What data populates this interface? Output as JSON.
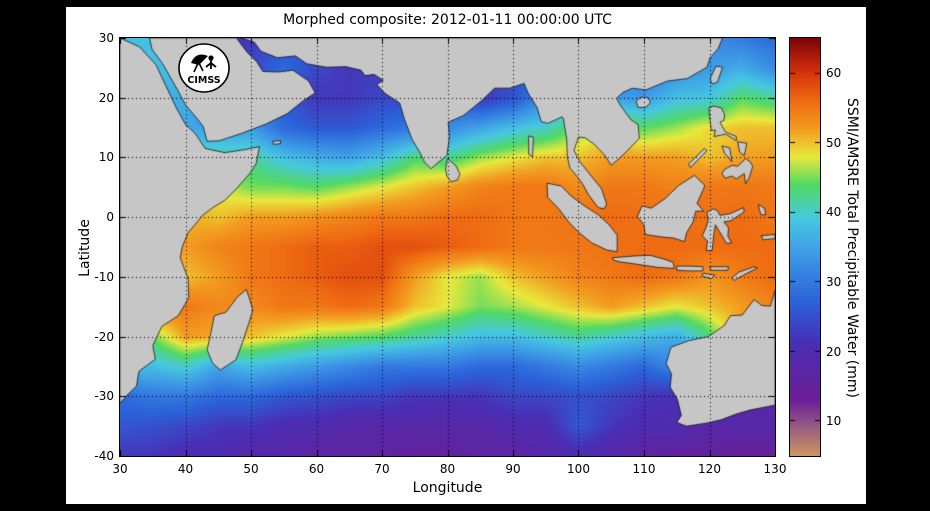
{
  "figure": {
    "background": "#000000",
    "canvas_bg": "#ffffff",
    "land_color": "#c6c6c6",
    "coastline_color": "#000000",
    "grid_color": "#000000"
  },
  "logo": {
    "text": "CIMSS"
  },
  "chart_data": {
    "type": "heatmap",
    "title": "Morphed composite: 2012-01-11 00:00:00 UTC",
    "xlabel": "Longitude",
    "ylabel": "Latitude",
    "xlim": [
      30,
      130
    ],
    "ylim": [
      -40,
      30
    ],
    "x_ticks": [
      30,
      40,
      50,
      60,
      70,
      80,
      90,
      100,
      110,
      120,
      130
    ],
    "y_ticks": [
      30,
      20,
      10,
      0,
      -10,
      -20,
      -30,
      -40
    ],
    "grid": "dotted",
    "units": "mm",
    "colorbar": {
      "label": "SSMI/AMSRE Total Precipitable Water (mm)",
      "ticks": [
        10,
        20,
        30,
        40,
        50,
        60
      ],
      "range": [
        5,
        65
      ],
      "orientation": "vertical-right"
    },
    "colormap": [
      [
        5,
        "#CE9560"
      ],
      [
        9,
        "#9A5E82"
      ],
      [
        13,
        "#6B1E96"
      ],
      [
        21,
        "#4A2EB4"
      ],
      [
        27,
        "#2B62D9"
      ],
      [
        34,
        "#3E9BE6"
      ],
      [
        39,
        "#46C8E0"
      ],
      [
        44,
        "#52D964"
      ],
      [
        48,
        "#E8E83C"
      ],
      [
        52,
        "#F29B20"
      ],
      [
        56,
        "#EF6C12"
      ],
      [
        60,
        "#D6330C"
      ],
      [
        65,
        "#7E0308"
      ]
    ],
    "values_legend": "Total precipitable water (mm) sampled on a 5-degree grid; null = land / no data",
    "lons": [
      30,
      35,
      40,
      45,
      50,
      55,
      60,
      65,
      70,
      75,
      80,
      85,
      90,
      95,
      100,
      105,
      110,
      115,
      120,
      125,
      130
    ],
    "lats": [
      30,
      25,
      20,
      15,
      10,
      5,
      0,
      -5,
      -10,
      -15,
      -20,
      -25,
      -30,
      -35,
      -40
    ],
    "values": [
      [
        null,
        null,
        null,
        null,
        22,
        null,
        null,
        null,
        null,
        null,
        null,
        null,
        null,
        null,
        null,
        null,
        null,
        null,
        null,
        30,
        28
      ],
      [
        null,
        38,
        null,
        null,
        24,
        28,
        24,
        22,
        null,
        null,
        null,
        null,
        null,
        null,
        null,
        null,
        30,
        32,
        34,
        36,
        32
      ],
      [
        null,
        36,
        null,
        null,
        null,
        26,
        22,
        22,
        24,
        null,
        null,
        22,
        25,
        null,
        null,
        null,
        34,
        38,
        null,
        44,
        42
      ],
      [
        null,
        null,
        null,
        null,
        34,
        28,
        26,
        26,
        28,
        null,
        32,
        35,
        38,
        40,
        null,
        null,
        44,
        46,
        null,
        50,
        50
      ],
      [
        null,
        null,
        null,
        null,
        42,
        38,
        36,
        35,
        38,
        null,
        42,
        46,
        48,
        50,
        50,
        52,
        52,
        52,
        50,
        null,
        52
      ],
      [
        null,
        null,
        null,
        null,
        45,
        45,
        44,
        46,
        48,
        50,
        52,
        54,
        55,
        55,
        null,
        55,
        55,
        null,
        55,
        55,
        55
      ],
      [
        null,
        null,
        null,
        50,
        52,
        52,
        53,
        54,
        55,
        55,
        56,
        56,
        55,
        55,
        null,
        56,
        null,
        null,
        null,
        56,
        55
      ],
      [
        null,
        null,
        52,
        54,
        55,
        56,
        57,
        57,
        58,
        58,
        57,
        56,
        55,
        55,
        55,
        null,
        56,
        56,
        null,
        56,
        56
      ],
      [
        null,
        null,
        50,
        52,
        55,
        56,
        57,
        58,
        58,
        52,
        48,
        46,
        50,
        52,
        54,
        55,
        56,
        55,
        null,
        null,
        56
      ],
      [
        null,
        null,
        55,
        null,
        null,
        55,
        55,
        56,
        55,
        50,
        48,
        45,
        46,
        48,
        50,
        52,
        50,
        48,
        50,
        52,
        null
      ],
      [
        null,
        null,
        52,
        null,
        50,
        48,
        46,
        45,
        44,
        42,
        40,
        38,
        38,
        40,
        42,
        40,
        38,
        36,
        null,
        null,
        null
      ],
      [
        null,
        38,
        40,
        null,
        38,
        36,
        34,
        32,
        30,
        30,
        30,
        28,
        28,
        30,
        32,
        30,
        28,
        null,
        null,
        null,
        null
      ],
      [
        null,
        30,
        30,
        28,
        28,
        26,
        25,
        24,
        24,
        22,
        22,
        22,
        24,
        24,
        25,
        24,
        22,
        null,
        null,
        null,
        null
      ],
      [
        26,
        25,
        24,
        22,
        22,
        20,
        20,
        18,
        18,
        18,
        18,
        18,
        20,
        20,
        26,
        22,
        20,
        20,
        18,
        18,
        18
      ],
      [
        22,
        22,
        20,
        20,
        18,
        18,
        16,
        16,
        16,
        15,
        15,
        16,
        16,
        18,
        20,
        18,
        16,
        15,
        15,
        14,
        14
      ]
    ]
  }
}
